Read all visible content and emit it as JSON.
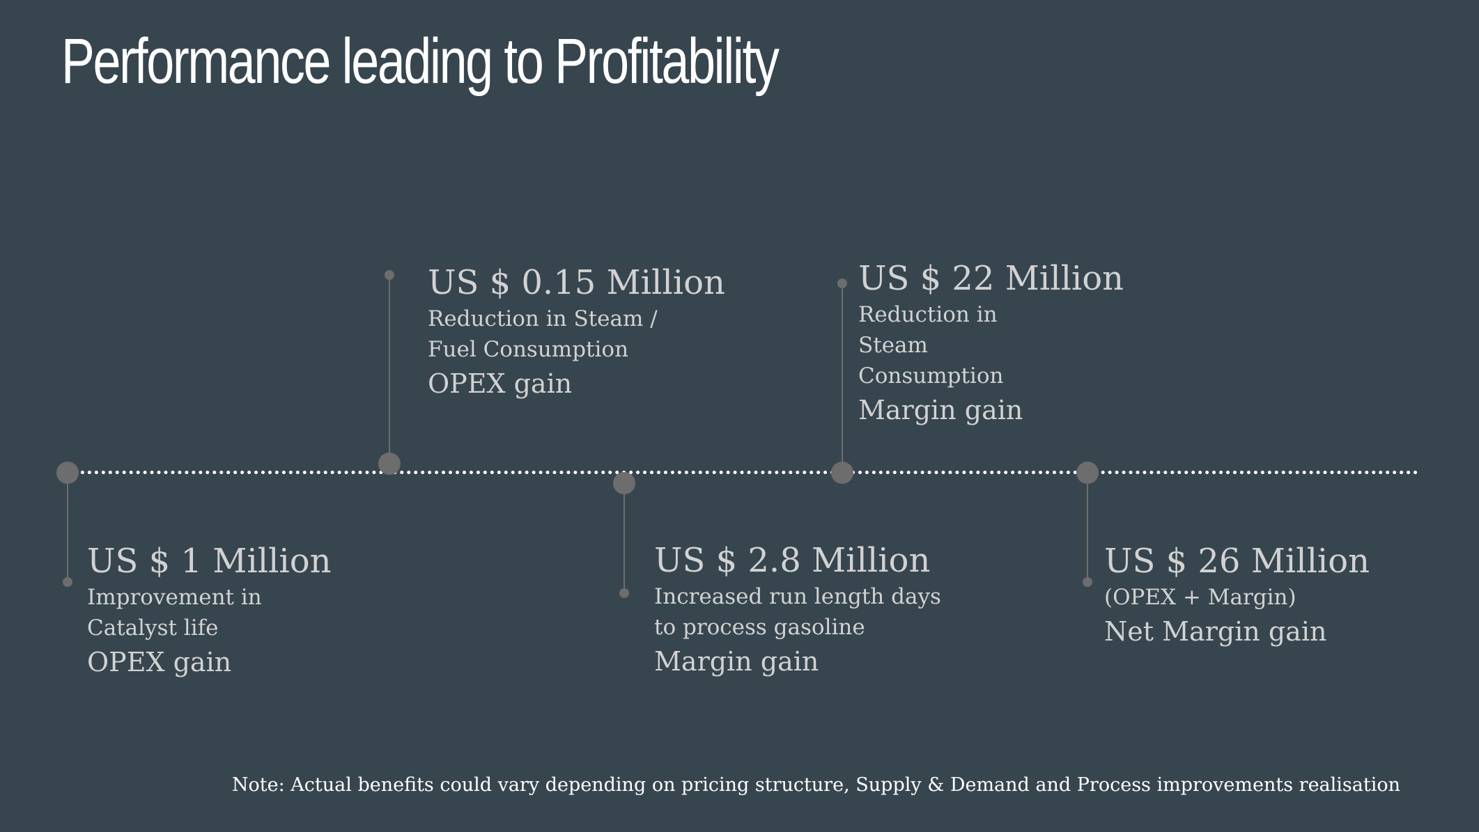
{
  "title": "Performance leading to Profitability",
  "colors": {
    "background": "#37454f",
    "node": "#6d6d6d",
    "text": "#d2d2d2",
    "title": "#ffffff"
  },
  "milestones": [
    {
      "amount": "US $ 1 Million",
      "description": "Improvement in Catalyst life",
      "gain": "OPEX gain",
      "side": "below"
    },
    {
      "amount": "US $ 0.15 Million",
      "description": "Reduction in Steam / Fuel Consumption",
      "gain": "OPEX gain",
      "side": "above"
    },
    {
      "amount": "US $ 2.8 Million",
      "description": "Increased run length days to process gasoline",
      "gain": "Margin gain",
      "side": "below"
    },
    {
      "amount": "US $ 22 Million",
      "description": "Reduction in Steam Consumption",
      "gain": "Margin gain",
      "side": "above"
    },
    {
      "amount": "US $ 26 Million",
      "description": "(OPEX + Margin)",
      "gain": "Net Margin gain",
      "side": "below"
    }
  ],
  "note": "Note: Actual benefits could vary depending on pricing structure, Supply & Demand and Process improvements realisation"
}
